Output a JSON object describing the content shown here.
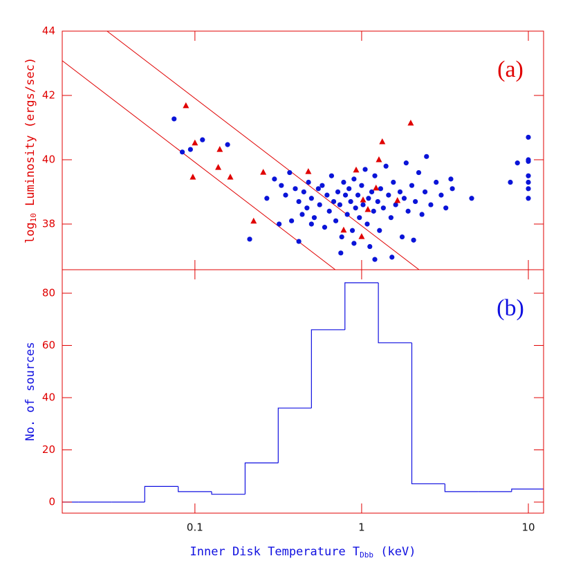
{
  "chart_data": [
    {
      "type": "scatter",
      "annotation": "(a)",
      "ylabel": [
        "log",
        "10",
        " Luminosity (ergs/sec)"
      ],
      "xlim": [
        0.016,
        12.34
      ],
      "ylim": [
        36.58,
        44
      ],
      "log_x": true,
      "xticks": [
        0.1,
        1,
        10
      ],
      "yticks": [
        38,
        40,
        42,
        44
      ],
      "lines": [
        {
          "color": "#e00000",
          "x": [
            0.0297,
            2.21
          ],
          "y": [
            44,
            36.58
          ]
        },
        {
          "color": "#e00000",
          "x": [
            0.016,
            0.695
          ],
          "y": [
            43.08,
            36.58
          ]
        }
      ],
      "series": [
        {
          "marker": "circle",
          "color": "#0a14d8",
          "x": [
            0.075,
            0.084,
            0.094,
            0.111,
            0.157,
            0.213,
            0.42,
            1.52,
            10,
            10,
            10,
            10,
            10,
            10,
            10,
            8.6,
            7.8,
            4.57,
            3.43,
            2.45,
            0.27,
            0.3,
            0.32,
            0.35,
            0.37,
            0.38,
            0.4,
            0.42,
            0.44,
            0.45,
            0.47,
            0.48,
            0.5,
            0.52,
            0.55,
            0.56,
            0.58,
            0.6,
            0.62,
            0.64,
            0.66,
            0.68,
            0.7,
            0.72,
            0.74,
            0.76,
            0.78,
            0.8,
            0.82,
            0.84,
            0.86,
            0.88,
            0.9,
            0.92,
            0.95,
            0.97,
            1.0,
            1.02,
            1.05,
            1.08,
            1.1,
            1.12,
            1.15,
            1.18,
            1.2,
            1.25,
            1.28,
            1.3,
            1.35,
            1.4,
            1.45,
            1.5,
            1.55,
            1.6,
            1.7,
            1.75,
            1.8,
            1.85,
            1.9,
            2.0,
            2.05,
            2.1,
            2.2,
            2.3,
            2.4,
            2.6,
            2.8,
            3.0,
            3.2,
            3.5,
            0.75,
            1.2,
            0.9,
            0.5,
            0.33
          ],
          "y": [
            41.27,
            40.24,
            40.32,
            40.62,
            40.47,
            37.53,
            37.46,
            36.97,
            40.7,
            40.0,
            39.95,
            39.5,
            39.3,
            39.1,
            38.8,
            39.9,
            39.3,
            38.8,
            39.4,
            40.1,
            38.8,
            39.4,
            38.0,
            38.9,
            39.6,
            38.1,
            39.1,
            38.7,
            38.3,
            39.0,
            38.5,
            39.3,
            38.8,
            38.2,
            39.1,
            38.6,
            39.2,
            37.9,
            38.9,
            38.4,
            39.5,
            38.7,
            38.1,
            39.0,
            38.6,
            37.6,
            39.3,
            38.9,
            38.3,
            39.1,
            38.7,
            37.8,
            39.4,
            38.5,
            38.9,
            38.2,
            39.2,
            38.6,
            39.7,
            38.0,
            38.8,
            37.3,
            39.0,
            38.4,
            39.5,
            38.7,
            37.8,
            39.1,
            38.5,
            39.8,
            38.9,
            38.2,
            39.3,
            38.6,
            39.0,
            37.6,
            38.8,
            39.9,
            38.4,
            39.2,
            37.5,
            38.7,
            39.6,
            38.3,
            39.0,
            38.6,
            39.3,
            38.9,
            38.5,
            39.1,
            37.1,
            36.9,
            37.4,
            38.0,
            39.2
          ]
        },
        {
          "marker": "triangle",
          "color": "#e00000",
          "x": [
            0.0883,
            0.1,
            0.0972,
            0.141,
            0.138,
            0.163,
            0.257,
            0.225,
            0.479,
            0.78,
            0.927,
            1.02,
            1.27,
            1.33,
            1.64,
            1.97,
            1.0,
            1.09,
            1.22
          ],
          "y": [
            41.68,
            40.52,
            39.46,
            40.32,
            39.76,
            39.46,
            39.61,
            38.09,
            39.63,
            37.81,
            39.68,
            38.75,
            40.0,
            40.56,
            38.73,
            41.14,
            37.61,
            38.45,
            39.12
          ]
        }
      ]
    },
    {
      "type": "histogram",
      "annotation": "(b)",
      "ylabel": "No. of sources",
      "xlabel": [
        "Inner Disk Temperature T",
        "Dbb",
        " (keV)"
      ],
      "xlim": [
        0.016,
        12.34
      ],
      "ylim": [
        -4.24,
        89
      ],
      "log_x": true,
      "xticks": [
        0.1,
        1,
        10
      ],
      "yticks": [
        0,
        20,
        40,
        60,
        80
      ],
      "color": "#1010e0",
      "bins": [
        0.0126,
        0.02,
        0.0316,
        0.05,
        0.0794,
        0.126,
        0.2,
        0.316,
        0.5,
        0.794,
        1.26,
        2,
        3.16,
        5.01,
        7.94,
        12.6
      ],
      "values": [
        0,
        0,
        0,
        6,
        4,
        3,
        15,
        36,
        66,
        84,
        61,
        7,
        4,
        4,
        5
      ]
    }
  ]
}
